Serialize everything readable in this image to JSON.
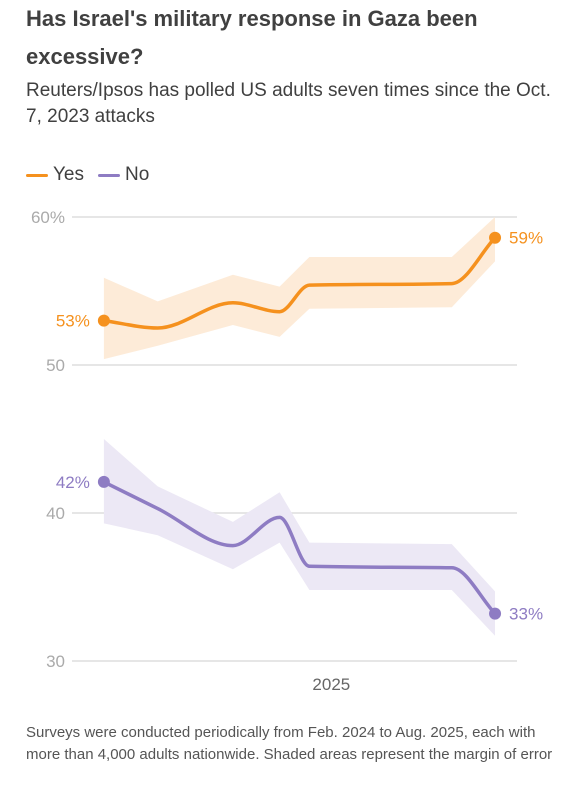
{
  "title": "Has Israel's military response in Gaza been excessive?",
  "subtitle": "Reuters/Ipsos has polled US adults seven times since the Oct. 7, 2023 attacks",
  "note": "Surveys were conducted periodically from Feb. 2024 to Aug. 2025, each with more than 4,000 adults nationwide. Shaded areas represent the margin of error",
  "colors": {
    "yes": "#f5911e",
    "yes_band": "#fdebd8",
    "no": "#8e7cc3",
    "no_band": "#ece8f5",
    "grid": "#dddddd",
    "axis_text": "#aaaaaa"
  },
  "chart_data": {
    "type": "line",
    "legend": [
      "Yes",
      "No"
    ],
    "legend_position": "top-left",
    "ylim": [
      30,
      60
    ],
    "yticks": [
      30,
      40,
      50,
      60
    ],
    "ytick_labels": [
      "30",
      "40",
      "50",
      "60%"
    ],
    "xlim": [
      "2024-01-01",
      "2025-09-20"
    ],
    "xticks": [
      {
        "x": "2025-01-01",
        "label": "2025"
      }
    ],
    "grid": true,
    "series": [
      {
        "name": "Yes",
        "x": [
          "2024-02-15",
          "2024-05-01",
          "2024-08-15",
          "2024-10-20",
          "2024-12-01",
          "2025-06-20",
          "2025-08-20"
        ],
        "values": [
          53,
          52.5,
          54.2,
          53.6,
          55.4,
          55.5,
          58.6
        ],
        "lower": [
          50.4,
          51.3,
          52.7,
          51.9,
          53.8,
          53.9,
          57.0
        ],
        "upper": [
          55.9,
          54.3,
          56.1,
          55.3,
          57.3,
          57.3,
          60.0
        ],
        "start_label": "53%",
        "end_label": "59%"
      },
      {
        "name": "No",
        "x": [
          "2024-02-15",
          "2024-05-01",
          "2024-08-15",
          "2024-10-20",
          "2024-12-01",
          "2025-06-20",
          "2025-08-20"
        ],
        "values": [
          42.1,
          40.3,
          37.8,
          39.7,
          36.4,
          36.3,
          33.2
        ],
        "lower": [
          39.3,
          38.5,
          36.2,
          38.0,
          34.8,
          34.8,
          31.7
        ],
        "upper": [
          45.0,
          41.8,
          39.4,
          41.4,
          38.0,
          37.9,
          34.7
        ],
        "start_label": "42%",
        "end_label": "33%"
      }
    ]
  }
}
